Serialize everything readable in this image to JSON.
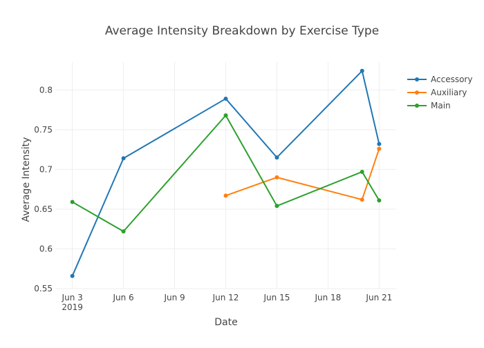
{
  "chart_data": {
    "type": "line",
    "title": "Average Intensity Breakdown by Exercise Type",
    "xlabel": "Date",
    "ylabel": "Average Intensity",
    "xlim": [
      "2019-06-02",
      "2019-06-22"
    ],
    "ylim": [
      0.55,
      0.835
    ],
    "x_ticks": [
      {
        "date": "2019-06-03",
        "label": "Jun 3",
        "sublabel": "2019"
      },
      {
        "date": "2019-06-06",
        "label": "Jun 6",
        "sublabel": ""
      },
      {
        "date": "2019-06-09",
        "label": "Jun 9",
        "sublabel": ""
      },
      {
        "date": "2019-06-12",
        "label": "Jun 12",
        "sublabel": ""
      },
      {
        "date": "2019-06-15",
        "label": "Jun 15",
        "sublabel": ""
      },
      {
        "date": "2019-06-18",
        "label": "Jun 18",
        "sublabel": ""
      },
      {
        "date": "2019-06-21",
        "label": "Jun 21",
        "sublabel": ""
      }
    ],
    "y_ticks": [
      {
        "value": 0.55,
        "label": "0.55"
      },
      {
        "value": 0.6,
        "label": "0.6"
      },
      {
        "value": 0.65,
        "label": "0.65"
      },
      {
        "value": 0.7,
        "label": "0.7"
      },
      {
        "value": 0.75,
        "label": "0.75"
      },
      {
        "value": 0.8,
        "label": "0.8"
      }
    ],
    "grid": true,
    "legend_position": "top-right",
    "series": [
      {
        "name": "Accessory",
        "color": "#1f77b4",
        "points": [
          {
            "x": "2019-06-03",
            "y": 0.566
          },
          {
            "x": "2019-06-06",
            "y": 0.714
          },
          {
            "x": "2019-06-12",
            "y": 0.789
          },
          {
            "x": "2019-06-15",
            "y": 0.715
          },
          {
            "x": "2019-06-20",
            "y": 0.824
          },
          {
            "x": "2019-06-21",
            "y": 0.732
          }
        ]
      },
      {
        "name": "Auxiliary",
        "color": "#ff7f0e",
        "points": [
          {
            "x": "2019-06-12",
            "y": 0.667
          },
          {
            "x": "2019-06-15",
            "y": 0.69
          },
          {
            "x": "2019-06-20",
            "y": 0.662
          },
          {
            "x": "2019-06-21",
            "y": 0.726
          }
        ]
      },
      {
        "name": "Main",
        "color": "#2ca02c",
        "points": [
          {
            "x": "2019-06-03",
            "y": 0.659
          },
          {
            "x": "2019-06-06",
            "y": 0.622
          },
          {
            "x": "2019-06-12",
            "y": 0.768
          },
          {
            "x": "2019-06-15",
            "y": 0.654
          },
          {
            "x": "2019-06-20",
            "y": 0.697
          },
          {
            "x": "2019-06-21",
            "y": 0.661
          }
        ]
      }
    ]
  }
}
